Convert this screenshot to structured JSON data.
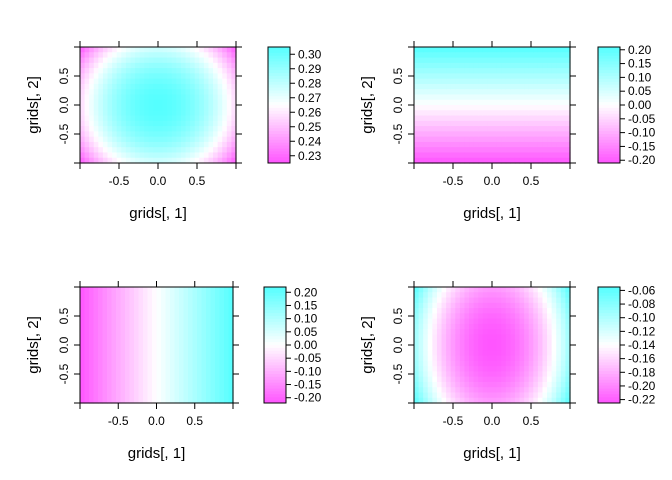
{
  "chart_data": [
    {
      "type": "heatmap",
      "pattern": "radial",
      "xlabel": "grids[, 1]",
      "ylabel": "grids[, 2]",
      "xlim": [
        -1,
        1
      ],
      "ylim": [
        -1,
        1
      ],
      "x_ticks": [
        -0.5,
        0.0,
        0.5
      ],
      "x_tick_labels": [
        "-0.5",
        "0.0",
        "0.5"
      ],
      "y_ticks": [
        -0.5,
        0.0,
        0.5
      ],
      "y_tick_labels": [
        "-0.5",
        "0.0",
        "0.5"
      ],
      "zlim": [
        0.225,
        0.305
      ],
      "colorbar_ticks": [
        0.23,
        0.24,
        0.25,
        0.26,
        0.27,
        0.28,
        0.29,
        0.3
      ],
      "colorbar_tick_labels": [
        "0.23",
        "0.24",
        "0.25",
        "0.26",
        "0.27",
        "0.28",
        "0.29",
        "0.30"
      ],
      "low_color": "#ff55ff",
      "high_color": "#55ffff",
      "grid": false
    },
    {
      "type": "heatmap",
      "pattern": "vertical",
      "xlabel": "grids[, 1]",
      "ylabel": "grids[, 2]",
      "xlim": [
        -1,
        1
      ],
      "ylim": [
        -1,
        1
      ],
      "x_ticks": [
        -0.5,
        0.0,
        0.5
      ],
      "x_tick_labels": [
        "-0.5",
        "0.0",
        "0.5"
      ],
      "y_ticks": [
        -0.5,
        0.0,
        0.5
      ],
      "y_tick_labels": [
        "-0.5",
        "0.0",
        "0.5"
      ],
      "zlim": [
        -0.21,
        0.21
      ],
      "colorbar_ticks": [
        -0.2,
        -0.15,
        -0.1,
        -0.05,
        0.0,
        0.05,
        0.1,
        0.15,
        0.2
      ],
      "colorbar_tick_labels": [
        "-0.20",
        "-0.15",
        "-0.10",
        "-0.05",
        "0.00",
        "0.05",
        "0.10",
        "0.15",
        "0.20"
      ],
      "low_color": "#ff55ff",
      "high_color": "#55ffff",
      "grid": false
    },
    {
      "type": "heatmap",
      "pattern": "horizontal",
      "xlabel": "grids[, 1]",
      "ylabel": "grids[, 2]",
      "xlim": [
        -1,
        1
      ],
      "ylim": [
        -1,
        1
      ],
      "x_ticks": [
        -0.5,
        0.0,
        0.5
      ],
      "x_tick_labels": [
        "-0.5",
        "0.0",
        "0.5"
      ],
      "y_ticks": [
        -0.5,
        0.0,
        0.5
      ],
      "y_tick_labels": [
        "-0.5",
        "0.0",
        "0.5"
      ],
      "zlim": [
        -0.22,
        0.22
      ],
      "colorbar_ticks": [
        -0.2,
        -0.15,
        -0.1,
        -0.05,
        0.0,
        0.05,
        0.1,
        0.15,
        0.2
      ],
      "colorbar_tick_labels": [
        "-0.20",
        "-0.15",
        "-0.10",
        "-0.05",
        "0.00",
        "0.05",
        "0.10",
        "0.15",
        "0.20"
      ],
      "low_color": "#ff55ff",
      "high_color": "#55ffff",
      "grid": false
    },
    {
      "type": "heatmap",
      "pattern": "radial-inverse",
      "xlabel": "grids[, 1]",
      "ylabel": "grids[, 2]",
      "xlim": [
        -1,
        1
      ],
      "ylim": [
        -1,
        1
      ],
      "x_ticks": [
        -0.5,
        0.0,
        0.5
      ],
      "x_tick_labels": [
        "-0.5",
        "0.0",
        "0.5"
      ],
      "y_ticks": [
        -0.5,
        0.0,
        0.5
      ],
      "y_tick_labels": [
        "-0.5",
        "0.0",
        "0.5"
      ],
      "zlim": [
        -0.225,
        -0.055
      ],
      "colorbar_ticks": [
        -0.22,
        -0.2,
        -0.18,
        -0.16,
        -0.14,
        -0.12,
        -0.1,
        -0.08,
        -0.06
      ],
      "colorbar_tick_labels": [
        "-0.22",
        "-0.20",
        "-0.18",
        "-0.16",
        "-0.14",
        "-0.12",
        "-0.10",
        "-0.08",
        "-0.06"
      ],
      "low_color": "#ff55ff",
      "high_color": "#55ffff",
      "grid": false
    }
  ]
}
